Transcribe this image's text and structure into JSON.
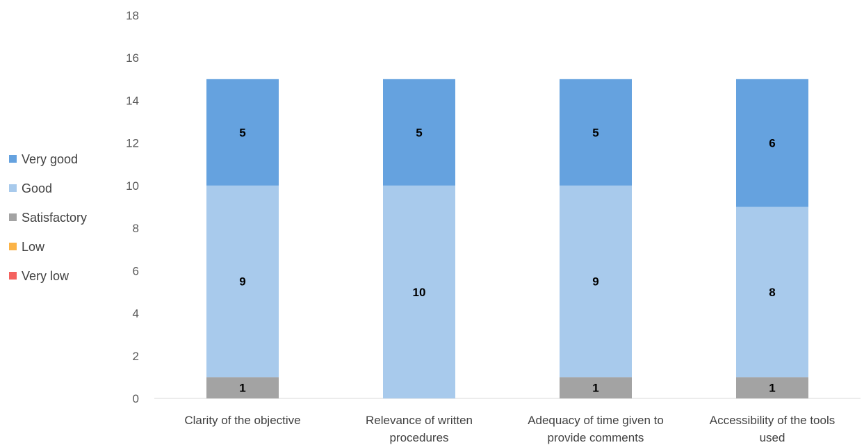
{
  "chart_data": {
    "type": "bar",
    "stacked": true,
    "categories": [
      [
        "Clarity of the objective"
      ],
      [
        "Relevance of written",
        "procedures"
      ],
      [
        "Adequacy of time given to",
        "provide comments"
      ],
      [
        "Accessibility of the tools",
        "used"
      ]
    ],
    "series": [
      {
        "name": "Very low",
        "color": "#f4625f",
        "values": [
          0,
          0,
          0,
          0
        ]
      },
      {
        "name": "Low",
        "color": "#fbb347",
        "values": [
          0,
          0,
          0,
          0
        ]
      },
      {
        "name": "Satisfactory",
        "color": "#a3a3a3",
        "values": [
          1,
          0,
          1,
          1
        ]
      },
      {
        "name": "Good",
        "color": "#a8caec",
        "values": [
          9,
          10,
          9,
          8
        ]
      },
      {
        "name": "Very good",
        "color": "#65a2df",
        "values": [
          5,
          5,
          5,
          6
        ]
      }
    ],
    "legend_order": [
      "Very good",
      "Good",
      "Satisfactory",
      "Low",
      "Very low"
    ],
    "legend_position": "left",
    "ylim": [
      0,
      18
    ],
    "yticks": [
      0,
      2,
      4,
      6,
      8,
      10,
      12,
      14,
      16,
      18
    ],
    "xlabel": "",
    "ylabel": "",
    "title": "",
    "grid": false
  }
}
